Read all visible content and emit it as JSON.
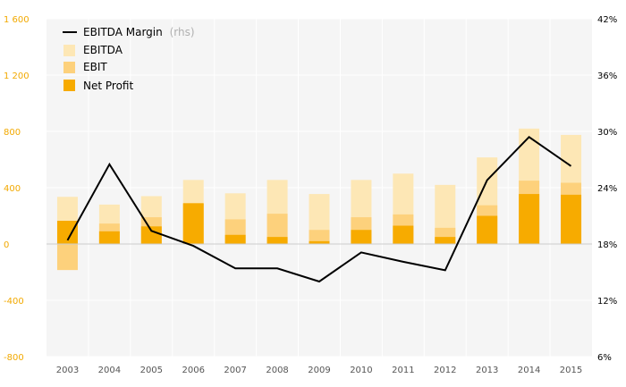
{
  "colors": {
    "ebitda": "#fde7b5",
    "ebit": "#fdd17c",
    "net_profit": "#f7ab00",
    "margin": "#000000",
    "left_ticks": "#f2a900",
    "panel": "#f5f5f5",
    "grid": "#ffffff"
  },
  "legend": {
    "margin": "EBITDA Margin",
    "margin_note": "(rhs)",
    "ebitda": "EBITDA",
    "ebit": "EBIT",
    "net_profit": "Net Profit"
  },
  "chart_data": {
    "type": "bar",
    "categories": [
      "2003",
      "2004",
      "2005",
      "2006",
      "2007",
      "2008",
      "2009",
      "2010",
      "2011",
      "2012",
      "2013",
      "2014",
      "2015"
    ],
    "series": [
      {
        "name": "EBITDA",
        "values": [
          335,
          280,
          340,
          455,
          360,
          455,
          355,
          455,
          500,
          420,
          615,
          820,
          775
        ]
      },
      {
        "name": "EBIT",
        "values": [
          -185,
          145,
          190,
          285,
          175,
          215,
          100,
          190,
          210,
          115,
          275,
          450,
          435
        ]
      },
      {
        "name": "Net Profit",
        "values": [
          165,
          90,
          125,
          290,
          65,
          50,
          20,
          100,
          130,
          50,
          200,
          355,
          350
        ]
      },
      {
        "name": "EBITDA Margin",
        "axis": "right",
        "values": [
          18.4,
          26.5,
          19.4,
          17.8,
          15.4,
          15.4,
          14.0,
          17.1,
          16.1,
          15.2,
          24.8,
          29.4,
          26.3
        ]
      }
    ],
    "ylim_left": [
      -800,
      1600
    ],
    "yticks_left": [
      -800,
      -400,
      0,
      400,
      800,
      1200,
      1600
    ],
    "ytick_labels_left": [
      "-800",
      "-400",
      "0",
      "400",
      "800",
      "1 200",
      "1 600"
    ],
    "ylim_right": [
      6,
      42
    ],
    "yticks_right": [
      6,
      12,
      18,
      24,
      30,
      36,
      42
    ],
    "ytick_labels_right": [
      "6%",
      "12%",
      "18%",
      "24%",
      "30%",
      "36%",
      "42%"
    ],
    "grid": true,
    "legend_position": "top-left"
  }
}
